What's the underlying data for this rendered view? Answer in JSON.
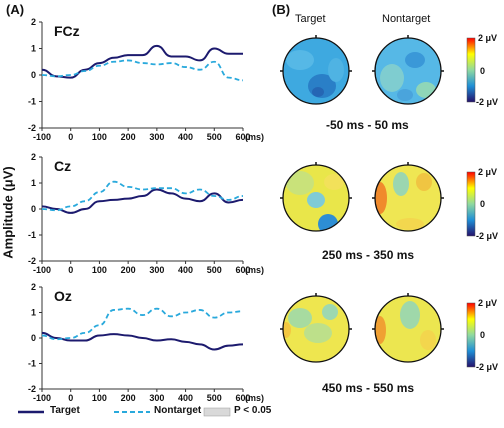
{
  "panels": {
    "a": "(A)",
    "b": "(B)"
  },
  "y_axis_label": "Amplitude (μV)",
  "x_unit": "(ms)",
  "topo": {
    "columns": [
      "Target",
      "Nontarget"
    ],
    "windows": [
      "-50 ms - 50 ms",
      "250 ms - 350 ms",
      "450 ms - 550 ms"
    ],
    "colorbar": {
      "max": "2 μV",
      "mid": "0",
      "min": "-2 μV",
      "colors": [
        "#ff0000",
        "#ffff00",
        "#8fd9a0",
        "#1f8fd6",
        "#24116b"
      ]
    }
  },
  "legend": {
    "target": "Target",
    "nontarget": "Nontarget",
    "sig": "P < 0.05"
  },
  "colors": {
    "target": "#1c1a6e",
    "nontarget": "#29a9dc"
  },
  "chart_data": [
    {
      "type": "line",
      "title": "FCz",
      "x": [
        -100,
        -50,
        0,
        50,
        100,
        150,
        200,
        250,
        300,
        350,
        400,
        450,
        500,
        550,
        600
      ],
      "xticks": [
        "-100",
        "0",
        "100",
        "200",
        "300",
        "400",
        "500",
        "600"
      ],
      "yticks": [
        "2",
        "1",
        "0",
        "-1",
        "-2"
      ],
      "xlim": [
        -100,
        600
      ],
      "ylim": [
        -2,
        2
      ],
      "series": [
        {
          "name": "Target",
          "values": [
            0.2,
            -0.05,
            -0.1,
            0.2,
            0.45,
            0.65,
            0.75,
            0.75,
            1.1,
            0.7,
            0.7,
            0.55,
            1.0,
            0.8,
            0.8
          ]
        },
        {
          "name": "Nontarget",
          "values": [
            0.0,
            -0.05,
            0.0,
            0.15,
            0.35,
            0.5,
            0.55,
            0.45,
            0.4,
            0.45,
            0.3,
            0.2,
            0.5,
            -0.1,
            -0.2
          ]
        }
      ]
    },
    {
      "type": "line",
      "title": "Cz",
      "x": [
        -100,
        -50,
        0,
        50,
        100,
        150,
        200,
        250,
        300,
        350,
        400,
        450,
        500,
        550,
        600
      ],
      "xticks": [
        "-100",
        "0",
        "100",
        "200",
        "300",
        "400",
        "500",
        "600"
      ],
      "yticks": [
        "2",
        "1",
        "0",
        "-1",
        "-2"
      ],
      "xlim": [
        -100,
        600
      ],
      "ylim": [
        -2,
        2
      ],
      "series": [
        {
          "name": "Target",
          "values": [
            0.1,
            0.0,
            -0.15,
            0.0,
            0.3,
            0.35,
            0.4,
            0.5,
            0.75,
            0.6,
            0.4,
            0.3,
            0.6,
            0.25,
            0.35
          ]
        },
        {
          "name": "Nontarget",
          "values": [
            0.0,
            -0.05,
            0.1,
            0.3,
            0.65,
            1.05,
            0.85,
            0.75,
            0.8,
            0.8,
            0.6,
            0.75,
            0.5,
            0.35,
            0.5
          ]
        }
      ]
    },
    {
      "type": "line",
      "title": "Oz",
      "x": [
        -100,
        -50,
        0,
        50,
        100,
        150,
        200,
        250,
        300,
        350,
        400,
        450,
        500,
        550,
        600
      ],
      "xticks": [
        "-100",
        "0",
        "100",
        "200",
        "300",
        "400",
        "500",
        "600"
      ],
      "yticks": [
        "2",
        "1",
        "0",
        "-1",
        "-2"
      ],
      "xlim": [
        -100,
        600
      ],
      "ylim": [
        -2,
        2
      ],
      "series": [
        {
          "name": "Target",
          "values": [
            0.2,
            0.0,
            -0.1,
            -0.1,
            0.1,
            0.15,
            0.1,
            0.0,
            -0.1,
            -0.05,
            -0.15,
            -0.25,
            -0.45,
            -0.3,
            -0.25
          ]
        },
        {
          "name": "Nontarget",
          "values": [
            0.1,
            -0.05,
            0.0,
            0.2,
            0.5,
            1.1,
            1.15,
            0.9,
            1.15,
            0.85,
            1.0,
            1.1,
            0.8,
            1.0,
            1.05
          ]
        }
      ]
    }
  ]
}
